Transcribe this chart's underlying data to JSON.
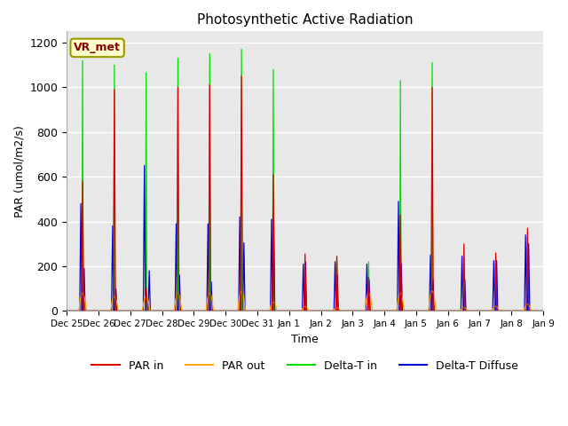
{
  "title": "Photosynthetic Active Radiation",
  "ylabel": "PAR (umol/m2/s)",
  "xlabel": "Time",
  "ylim": [
    0,
    1250
  ],
  "yticks": [
    0,
    200,
    400,
    600,
    800,
    1000,
    1200
  ],
  "legend_label": "VR_met",
  "legend_entries": [
    "PAR in",
    "PAR out",
    "Delta-T in",
    "Delta-T Diffuse"
  ],
  "colors": {
    "PAR_in": "#dd0000",
    "PAR_out": "#ffaa00",
    "Delta_T_in": "#00dd00",
    "Delta_T_Diffuse": "#0000dd"
  },
  "background_color": "#e8e8e8",
  "xtick_labels": [
    "Dec 25",
    "Dec 26",
    "Dec 27",
    "Dec 28",
    "Dec 29",
    "Dec 30",
    "Dec 31",
    "Jan 1",
    "Jan 2",
    "Jan 3",
    "Jan 4",
    "Jan 5",
    "Jan 6",
    "Jan 7",
    "Jan 8",
    "Jan 9"
  ],
  "n_days": 15,
  "points_per_day": 144
}
